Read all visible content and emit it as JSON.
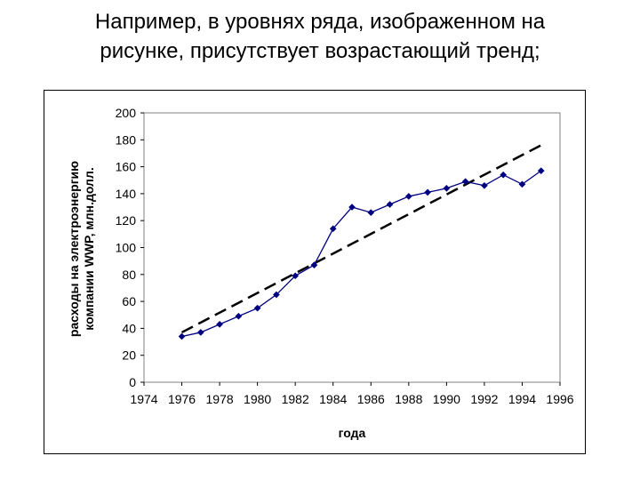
{
  "slide": {
    "title_line1": "Например, в уровнях ряда, изображенном на",
    "title_line2": "рисунке, присутствует возрастающий тренд;"
  },
  "chart_data": {
    "type": "line",
    "xlabel": "года",
    "ylabel_line1": "расходы на электроэнергию",
    "ylabel_line2": "компании WWP, млн.долл.",
    "xlim": [
      1974,
      1996
    ],
    "ylim": [
      0,
      200
    ],
    "x_ticks": [
      1974,
      1976,
      1978,
      1980,
      1982,
      1984,
      1986,
      1988,
      1990,
      1992,
      1994,
      1996
    ],
    "y_ticks": [
      0,
      20,
      40,
      60,
      80,
      100,
      120,
      140,
      160,
      180,
      200
    ],
    "grid": false,
    "legend": "none",
    "series": [
      {
        "style": "solid line with diamond markers",
        "color": "#000080",
        "x": [
          1976,
          1977,
          1978,
          1979,
          1980,
          1981,
          1982,
          1983,
          1984,
          1985,
          1986,
          1987,
          1988,
          1989,
          1990,
          1991,
          1992,
          1993,
          1994,
          1995
        ],
        "y": [
          34,
          37,
          43,
          49,
          55,
          65,
          79,
          87,
          114,
          130,
          126,
          132,
          138,
          141,
          144,
          149,
          146,
          154,
          147,
          157
        ]
      },
      {
        "style": "dashed trend line",
        "color": "#000000",
        "x": [
          1976,
          1995
        ],
        "y": [
          37,
          176
        ]
      }
    ]
  }
}
